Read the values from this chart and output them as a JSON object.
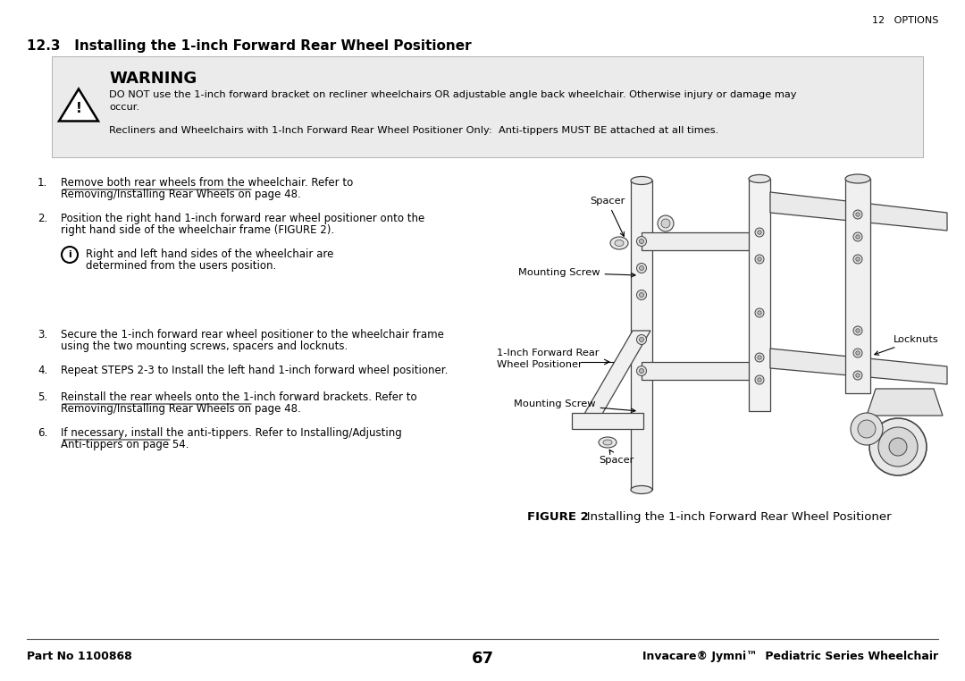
{
  "bg_color": "#ffffff",
  "header_right": "12   OPTIONS",
  "section_title": "12.3   Installing the 1-inch Forward Rear Wheel Positioner",
  "warning_text_1": "DO NOT use the 1-inch forward bracket on recliner wheelchairs OR adjustable angle back wheelchair. Otherwise injury or damage may",
  "warning_text_1b": "occur.",
  "warning_text_2": "Recliners and Wheelchairs with 1-Inch Forward Rear Wheel Positioner Only:  Anti-tippers MUST BE attached at all times.",
  "figure_caption_bold": "FIGURE 2",
  "figure_caption_normal": "   Installing the 1-inch Forward Rear Wheel Positioner",
  "footer_left": "Part No 1100868",
  "footer_center": "67",
  "footer_right": "Invacare® Jymni™  Pediatric Series Wheelchair",
  "font_size_body": 8.5,
  "font_size_header": 8.0,
  "font_size_section": 11.0,
  "font_size_footer": 9.0
}
